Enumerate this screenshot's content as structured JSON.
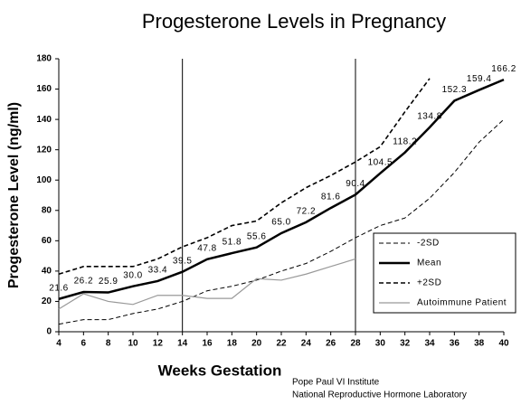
{
  "chart_data": {
    "type": "line",
    "title": "Progesterone Levels in Pregnancy",
    "xlabel": "Weeks Gestation",
    "ylabel": "Progesterone Level (ng/ml)",
    "footnote": [
      "Pope Paul VI Institute",
      "National Reproductive Hormone Laboratory"
    ],
    "x": [
      4,
      6,
      8,
      10,
      12,
      14,
      16,
      18,
      20,
      22,
      24,
      26,
      28,
      30,
      32,
      34,
      36,
      38,
      40
    ],
    "xlim": [
      4,
      40
    ],
    "xticks": [
      4,
      6,
      8,
      10,
      12,
      14,
      16,
      18,
      20,
      22,
      24,
      26,
      28,
      30,
      32,
      34,
      36,
      38,
      40
    ],
    "ylim": [
      0,
      180
    ],
    "yticks": [
      0,
      20,
      40,
      60,
      80,
      100,
      120,
      140,
      160,
      180
    ],
    "reference_lines": [
      14,
      28
    ],
    "grid": false,
    "legend": "lower right",
    "series": [
      {
        "name": "-2SD",
        "color": "#000000",
        "dashed": true,
        "width": 1,
        "values": [
          5,
          8,
          8,
          12,
          15,
          20,
          27,
          30,
          34,
          40,
          45,
          53,
          62,
          70,
          75,
          88,
          105,
          125,
          140
        ]
      },
      {
        "name": "Mean",
        "color": "#000000",
        "dashed": false,
        "width": 2.5,
        "values": [
          21.6,
          26.2,
          25.9,
          30.0,
          33.4,
          39.5,
          47.8,
          51.8,
          55.6,
          65.0,
          72.2,
          81.6,
          90.4,
          104.5,
          118.2,
          134.8,
          152.3,
          159.4,
          166.2
        ],
        "value_labels": [
          "21.6",
          "26.2",
          "25.9",
          "30.0",
          "33.4",
          "39.5",
          "47.8",
          "51.8",
          "55.6",
          "65.0",
          "72.2",
          "81.6",
          "90.4",
          "104.5",
          "118.2",
          "134.8",
          "152.3",
          "159.4",
          "166.2"
        ]
      },
      {
        "name": "+2SD",
        "color": "#000000",
        "dashed": true,
        "width": 1.6,
        "values": [
          38,
          43,
          43,
          43,
          48,
          56,
          62,
          70,
          73,
          85,
          95,
          103,
          112,
          122,
          145,
          167,
          null,
          null,
          null
        ]
      },
      {
        "name": "Autoimmune Patient",
        "color": "#999999",
        "dashed": false,
        "width": 1.2,
        "values": [
          15,
          25,
          20,
          18,
          24,
          24,
          22,
          22,
          35,
          34,
          38,
          43,
          48,
          null,
          null,
          null,
          null,
          null,
          null
        ]
      }
    ]
  }
}
